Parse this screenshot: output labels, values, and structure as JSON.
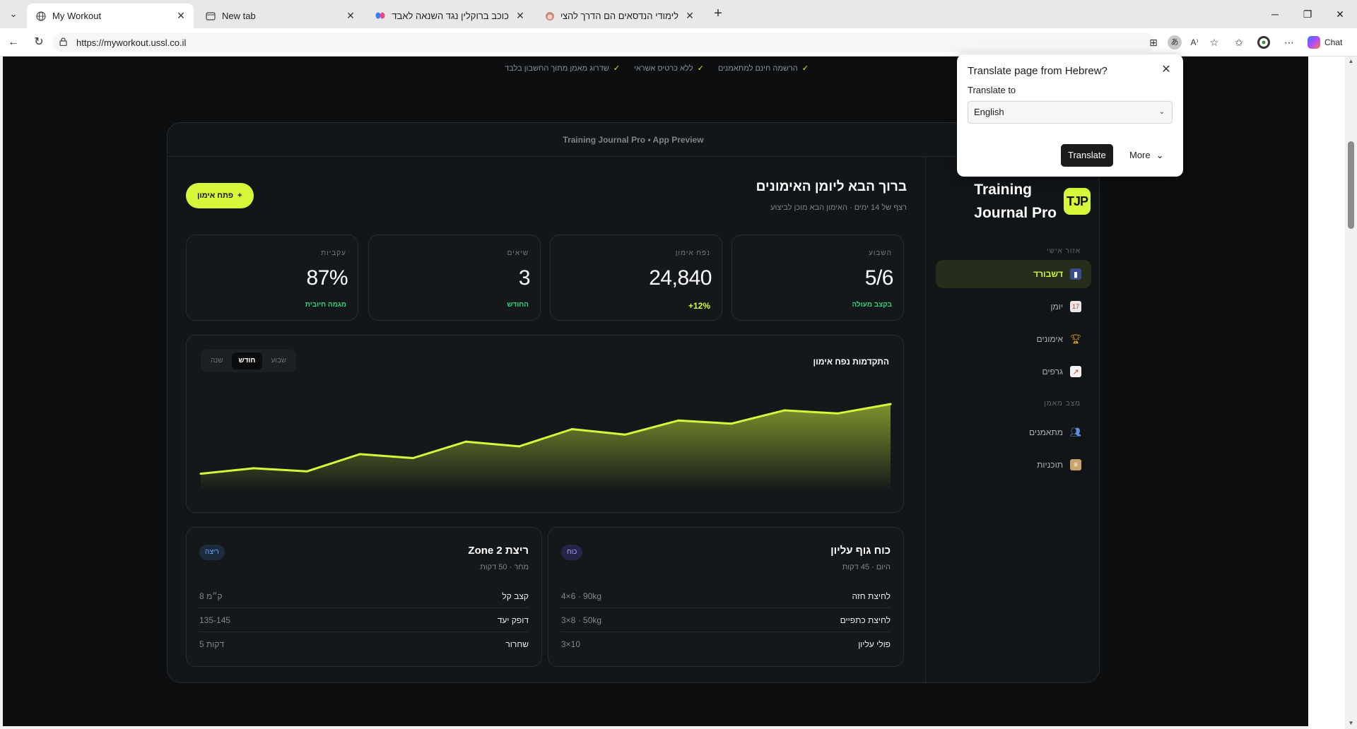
{
  "browser": {
    "tabs": [
      {
        "title": "My Workout",
        "icon": "globe-icon",
        "active": true
      },
      {
        "title": "New tab",
        "icon": "newtab-icon",
        "active": false
      },
      {
        "title": "כוכב ברוקלין נגד השנאה לאבדיה: \"י",
        "icon": "butterfly-icon",
        "active": false
      },
      {
        "title": "לימודי הנדסאים הם הדרך להצלחה!!",
        "icon": "face-icon",
        "active": false
      }
    ],
    "url": "https://myworkout.ussl.co.il",
    "chat_label": "Chat"
  },
  "page": {
    "benefits": [
      "הרשמה חינם למתאמנים",
      "ללא כרטיס אשראי",
      "שדרוג מאמן מתוך החשבון בלבד"
    ],
    "preview_header": "Training Journal Pro • App Preview",
    "sidebar": {
      "brand_line1": "Training",
      "brand_line2": "Journal Pro",
      "logo_initials": "TJP",
      "section_personal": "אזור אישי",
      "section_coach": "מצב מאמן",
      "items": [
        {
          "label": "דשבורד",
          "icon": "bar-chart-icon",
          "active": true
        },
        {
          "label": "יומן",
          "icon": "calendar-icon",
          "active": false
        },
        {
          "label": "אימונים",
          "icon": "trophy-icon",
          "active": false
        },
        {
          "label": "גרפים",
          "icon": "trend-icon",
          "active": false
        },
        {
          "label": "מתאמנים",
          "icon": "users-icon",
          "active": false
        },
        {
          "label": "תוכניות",
          "icon": "clipboard-icon",
          "active": false
        }
      ]
    },
    "welcome": {
      "title": "ברוך הבא ליומן האימונים",
      "subtitle": "רצף של 14 ימים · האימון הבא מוכן לביצוע",
      "open_button": "פתח אימון",
      "open_button_icon": "+"
    },
    "stats": [
      {
        "label": "השבוע",
        "value": "5/6",
        "note": "בקצב מעולה"
      },
      {
        "label": "נפח אימון",
        "value": "24,840",
        "note": "12%+"
      },
      {
        "label": "שיאים",
        "value": "3",
        "note": "החודש"
      },
      {
        "label": "עקביות",
        "value": "87%",
        "note": "מגמה חיובית"
      }
    ],
    "chart": {
      "title": "התקדמות נפח אימון",
      "ranges": [
        "שבוע",
        "חודש",
        "שנה"
      ],
      "selected_range": "חודש"
    },
    "workouts": [
      {
        "title": "כוח גוף עליון",
        "subtitle": "היום · 45 דקות",
        "badge": "כוח",
        "rows": [
          {
            "name": "לחיצת חזה",
            "value": "4×6 · 90kg"
          },
          {
            "name": "לחיצת כתפיים",
            "value": "3×8 · 50kg"
          },
          {
            "name": "פולי עליון",
            "value": "3×10"
          }
        ]
      },
      {
        "title": "ריצת Zone 2",
        "subtitle": "מחר · 50 דקות",
        "badge": "ריצה",
        "rows": [
          {
            "name": "קצב קל",
            "value": "8 ק״מ"
          },
          {
            "name": "דופק יעד",
            "value": "135-145"
          },
          {
            "name": "שחרור",
            "value": "5 דקות"
          }
        ]
      }
    ]
  },
  "translate_popup": {
    "title": "Translate page from Hebrew?",
    "to_label": "Translate to",
    "language": "English",
    "translate_button": "Translate",
    "more_button": "More"
  },
  "chart_data": {
    "type": "area",
    "title": "התקדמות נפח אימון",
    "x": [
      1,
      2,
      3,
      4,
      5,
      6,
      7,
      8,
      9,
      10,
      11,
      12,
      13,
      14
    ],
    "series": [
      {
        "values": [
          22,
          29,
          25,
          47,
          42,
          63,
          57,
          79,
          72,
          90,
          86,
          103,
          99,
          111
        ]
      }
    ],
    "ylim": [
      0,
      130
    ],
    "grid": false,
    "colors": {
      "line": "#d6f73a",
      "fill": "#d6f73a"
    }
  }
}
